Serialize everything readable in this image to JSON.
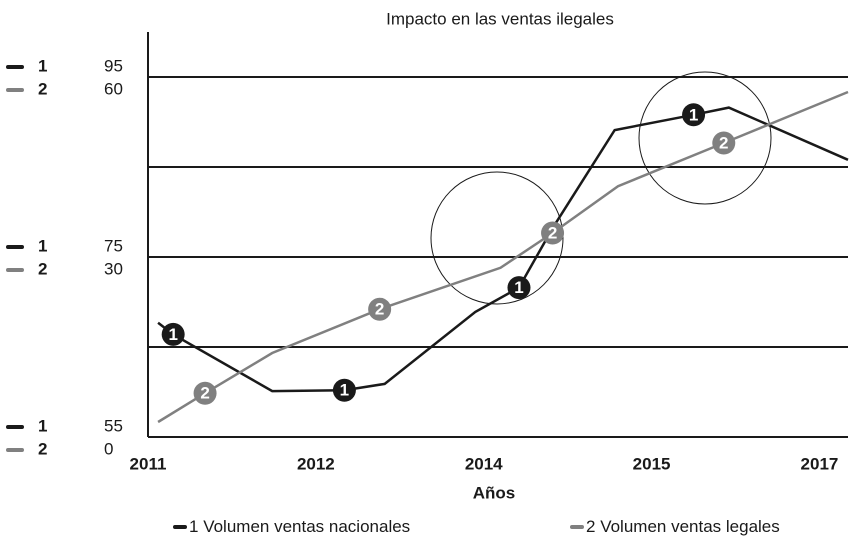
{
  "chart_data": {
    "type": "line",
    "title": "Impacto en las ventas ilegales",
    "xlabel": "Años",
    "xlim": [
      0,
      4.17
    ],
    "xticks": [
      {
        "value": 0,
        "label": "2011"
      },
      {
        "value": 1,
        "label": "2012"
      },
      {
        "value": 2,
        "label": "2014"
      },
      {
        "value": 3,
        "label": "2015"
      },
      {
        "value": 4,
        "label": "2017"
      }
    ],
    "ylim": [
      55,
      100
    ],
    "yticks": [
      55,
      75,
      95
    ],
    "ygrid": [
      65,
      75,
      85,
      95
    ],
    "y2lim": [
      0,
      67.5
    ],
    "y2ticks": [
      0,
      30,
      60
    ],
    "series": [
      {
        "id": "1",
        "name": "Volumen ventas nacionales",
        "color": "#1a1a1a",
        "x": [
          0.06,
          0.15,
          0.74,
          1.17,
          1.41,
          1.95,
          2.21,
          2.41,
          2.78,
          3.25,
          3.46,
          4.17
        ],
        "values": [
          67.7,
          66.4,
          60.1,
          60.2,
          60.9,
          68.9,
          71.6,
          78.2,
          89.1,
          90.8,
          91.6,
          85.8
        ],
        "markers": [
          1,
          3,
          6,
          9
        ]
      },
      {
        "id": "2",
        "name": "Volumen ventas legales",
        "color": "#808080",
        "axis": "y2",
        "x": [
          0.06,
          0.34,
          0.74,
          1.38,
          2.1,
          2.41,
          2.8,
          3.43,
          4.17
        ],
        "values": [
          2.5,
          7.3,
          14,
          21.3,
          28.2,
          34,
          41.8,
          49,
          57.5
        ],
        "markers": [
          1,
          3,
          5,
          7
        ]
      }
    ]
  }
}
